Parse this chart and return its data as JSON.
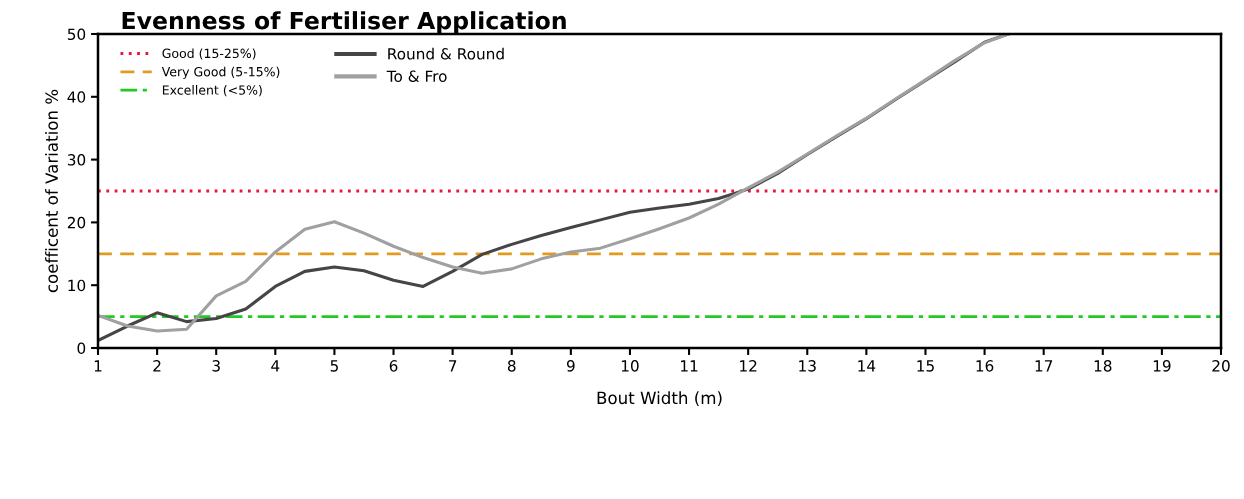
{
  "chart_data": {
    "type": "line",
    "title": "Evenness of Fertiliser Application",
    "xlabel": "Bout Width (m)",
    "ylabel": "coefficent of Variation %",
    "x": [
      1,
      1.5,
      2,
      2.5,
      3,
      3.5,
      4,
      4.5,
      5,
      5.5,
      6,
      6.5,
      7,
      7.5,
      8,
      8.5,
      9,
      9.5,
      10,
      10.5,
      11,
      11.5,
      12,
      12.5,
      13,
      13.5,
      14,
      14.5,
      15,
      15.5,
      16,
      16.4
    ],
    "series": [
      {
        "name": "Round & Round",
        "color": "#454545",
        "values": [
          1.2,
          3.5,
          5.6,
          4.2,
          4.7,
          6.2,
          9.8,
          12.2,
          12.9,
          12.3,
          10.8,
          9.8,
          12.2,
          14.9,
          16.5,
          17.9,
          19.2,
          20.4,
          21.6,
          22.3,
          22.9,
          23.8,
          25.3,
          27.8,
          30.8,
          33.7,
          36.5,
          39.6,
          42.6,
          45.6,
          48.7,
          50
        ]
      },
      {
        "name": "To & Fro",
        "color": "#a0a0a0",
        "values": [
          5.2,
          3.5,
          2.7,
          3.0,
          8.3,
          10.6,
          15.3,
          18.9,
          20.1,
          18.3,
          16.2,
          14.4,
          12.9,
          11.9,
          12.6,
          14.2,
          15.3,
          15.9,
          17.4,
          19.0,
          20.7,
          22.9,
          25.5,
          28.0,
          30.9,
          33.8,
          36.6,
          39.7,
          42.7,
          45.8,
          48.6,
          50
        ]
      }
    ],
    "ref_lines": [
      {
        "axis": "y",
        "value": 25,
        "label": "Good (15-25%)",
        "color": "#e8173a",
        "line_style": "dotted"
      },
      {
        "axis": "y",
        "value": 15,
        "label": "Very Good (5-15%)",
        "color": "#e39a1f",
        "line_style": "dashed"
      },
      {
        "axis": "y",
        "value": 5,
        "label": "Excellent (<5%)",
        "color": "#22c922",
        "line_style": "dashdot"
      }
    ],
    "xlim": [
      1,
      20
    ],
    "xticks": [
      1,
      2,
      3,
      4,
      5,
      6,
      7,
      8,
      9,
      10,
      11,
      12,
      13,
      14,
      15,
      16,
      17,
      18,
      19,
      20
    ],
    "ylim": [
      0,
      50
    ],
    "yticks": [
      0,
      10,
      20,
      30,
      40,
      50
    ],
    "grid": false,
    "legend": "top left",
    "marker": "none",
    "line_style": "solid"
  }
}
